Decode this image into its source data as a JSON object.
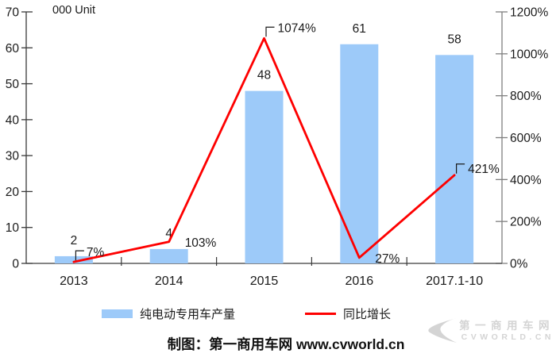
{
  "chart_data": {
    "type": "bar",
    "subtype": "combo-bar-line-dual-axis",
    "title": "",
    "categories": [
      "2013",
      "2014",
      "2015",
      "2016",
      "2017.1-10"
    ],
    "series": [
      {
        "name": "纯电动专用车产量",
        "type": "bar",
        "axis": "left",
        "values": [
          2,
          4,
          48,
          61,
          58
        ],
        "data_labels": [
          "2",
          "4",
          "48",
          "61",
          "58"
        ],
        "color": "#9DCAF9"
      },
      {
        "name": "同比增长",
        "type": "line",
        "axis": "right",
        "values": [
          7,
          103,
          1074,
          27,
          421
        ],
        "data_labels": [
          "7%",
          "103%",
          "1074%",
          "27%",
          "421%"
        ],
        "color": "#FE0000"
      }
    ],
    "left_axis": {
      "title": "000 Unit",
      "min": 0,
      "max": 70,
      "step": 10,
      "tick_labels": [
        "0",
        "10",
        "20",
        "30",
        "40",
        "50",
        "60",
        "70"
      ]
    },
    "right_axis": {
      "min": 0,
      "max": 1200,
      "step": 200,
      "tick_labels": [
        "0%",
        "200%",
        "400%",
        "600%",
        "800%",
        "1000%",
        "1200%"
      ]
    },
    "grid": false,
    "legend_position": "bottom"
  },
  "legend": {
    "bar_label": "纯电动专用车产量",
    "line_label": "同比增长"
  },
  "caption": "制图：第一商用车网 www.cvworld.cn",
  "watermark": {
    "line1": "第一商用车网",
    "line2": "CVWORLD.CN"
  },
  "colors": {
    "bar": "#9DCAF9",
    "line": "#FE0000",
    "axis_dark": "#3a3a3a",
    "axis_gray": "#7f7f7f",
    "text": "#1a1a1a",
    "watermark": "#d4d4d4"
  }
}
